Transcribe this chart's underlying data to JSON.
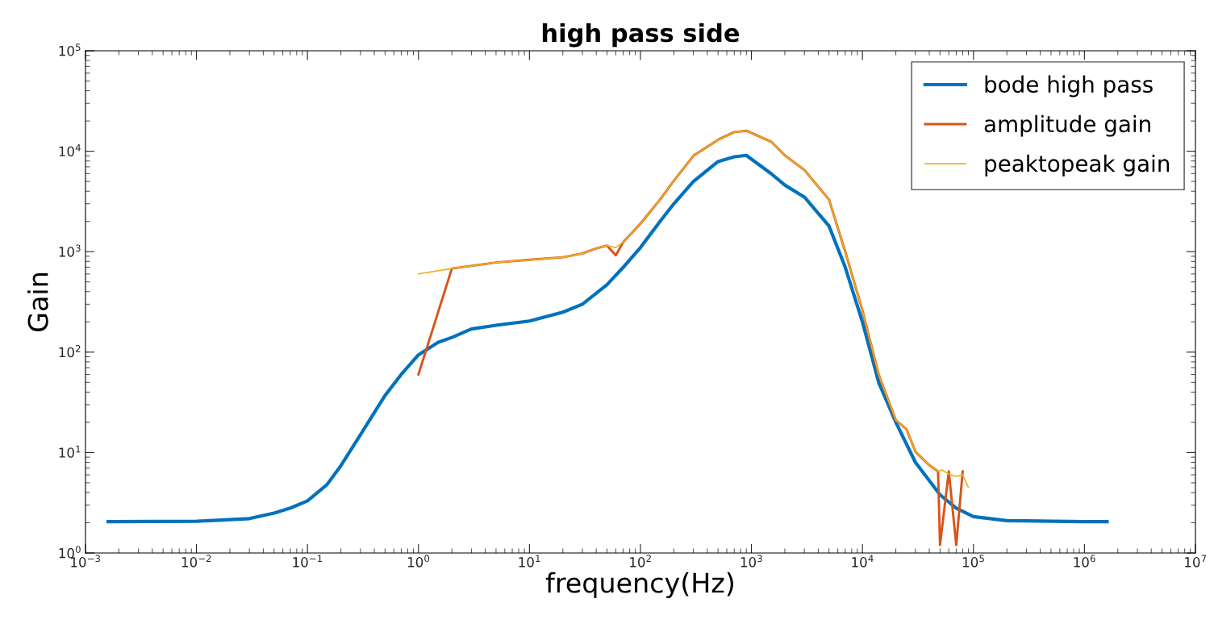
{
  "chart_data": {
    "type": "line",
    "title": "high pass side",
    "xlabel": "frequency(Hz)",
    "ylabel": "Gain",
    "log": "xy",
    "grid": false,
    "legend": "top right",
    "line_style": "solid",
    "marker": "none",
    "xlim": [
      0.001,
      10000000
    ],
    "ylim": [
      1,
      100000
    ],
    "xticks": [
      {
        "value": 0.001,
        "label": "10$^{−3}$"
      },
      {
        "value": 0.01,
        "label": "10$^{−2}$"
      },
      {
        "value": 0.1,
        "label": "10$^{−1}$"
      },
      {
        "value": 1,
        "label": "10$^{0}$"
      },
      {
        "value": 10,
        "label": "10$^{1}$"
      },
      {
        "value": 100,
        "label": "10$^{2}$"
      },
      {
        "value": 1000,
        "label": "10$^{3}$"
      },
      {
        "value": 10000,
        "label": "10$^{4}$"
      },
      {
        "value": 100000,
        "label": "10$^{5}$"
      },
      {
        "value": 1000000,
        "label": "10$^{6}$"
      },
      {
        "value": 10000000,
        "label": "10$^{7}$"
      }
    ],
    "yticks": [
      {
        "value": 1,
        "label": "10$^{0}$"
      },
      {
        "value": 10,
        "label": "10$^{1}$"
      },
      {
        "value": 100,
        "label": "10$^{2}$"
      },
      {
        "value": 1000,
        "label": "10$^{3}$"
      },
      {
        "value": 10000,
        "label": "10$^{4}$"
      },
      {
        "value": 100000,
        "label": "10$^{5}$"
      }
    ],
    "series": [
      {
        "name": "bode high pass",
        "color": "#0072bd",
        "x": [
          0.0016,
          0.01,
          0.03,
          0.05,
          0.07,
          0.1,
          0.15,
          0.2,
          0.3,
          0.4,
          0.5,
          0.7,
          1,
          1.5,
          2,
          3,
          5,
          10,
          20,
          30,
          50,
          70,
          100,
          150,
          200,
          300,
          500,
          700,
          900,
          1500,
          2000,
          3000,
          5000,
          7000,
          10000,
          14000,
          20000,
          30000,
          50000,
          70000,
          100000,
          200000,
          1000000,
          1600000
        ],
        "values": [
          2.05,
          2.07,
          2.2,
          2.5,
          2.8,
          3.3,
          4.8,
          7.4,
          15,
          25,
          37,
          60,
          94,
          125,
          140,
          170,
          185,
          204,
          250,
          300,
          470,
          700,
          1100,
          2000,
          3000,
          5000,
          7900,
          8800,
          9100,
          6000,
          4600,
          3500,
          1800,
          700,
          200,
          50,
          20,
          8,
          3.8,
          2.8,
          2.3,
          2.1,
          2.05,
          2.05
        ]
      },
      {
        "name": "amplitude gain",
        "color": "#d95319",
        "x": [
          1,
          2,
          5,
          10,
          20,
          30,
          40,
          50,
          60,
          70,
          100,
          150,
          200,
          300,
          500,
          700,
          900,
          1500,
          2000,
          3000,
          5000,
          7000,
          10000,
          14000,
          20000,
          25000,
          30000,
          40000,
          48000,
          50000,
          60000,
          70000,
          80000
        ],
        "values": [
          60,
          680,
          780,
          830,
          880,
          960,
          1080,
          1150,
          920,
          1250,
          1900,
          3300,
          5100,
          9000,
          13000,
          15500,
          16000,
          12500,
          9100,
          6500,
          3300,
          1000,
          260,
          60,
          21,
          17,
          10.2,
          7.5,
          6.5,
          1.2,
          6.5,
          1.2,
          6.5
        ]
      },
      {
        "name": "peaktopeak gain",
        "color": "#edb120",
        "x": [
          1,
          2,
          5,
          10,
          20,
          30,
          40,
          50,
          60,
          70,
          100,
          150,
          200,
          300,
          500,
          700,
          900,
          1500,
          2000,
          3000,
          5000,
          7000,
          10000,
          14000,
          20000,
          25000,
          30000,
          40000,
          48000,
          52000,
          60000,
          70000,
          80000,
          90000
        ],
        "values": [
          600,
          680,
          780,
          830,
          880,
          960,
          1080,
          1150,
          1100,
          1250,
          1900,
          3300,
          5100,
          9000,
          13000,
          15500,
          16000,
          12500,
          9100,
          6500,
          3300,
          1000,
          260,
          60,
          21,
          17,
          10.2,
          7.5,
          6.5,
          6.7,
          6.1,
          5.8,
          6.0,
          4.5
        ]
      }
    ]
  }
}
